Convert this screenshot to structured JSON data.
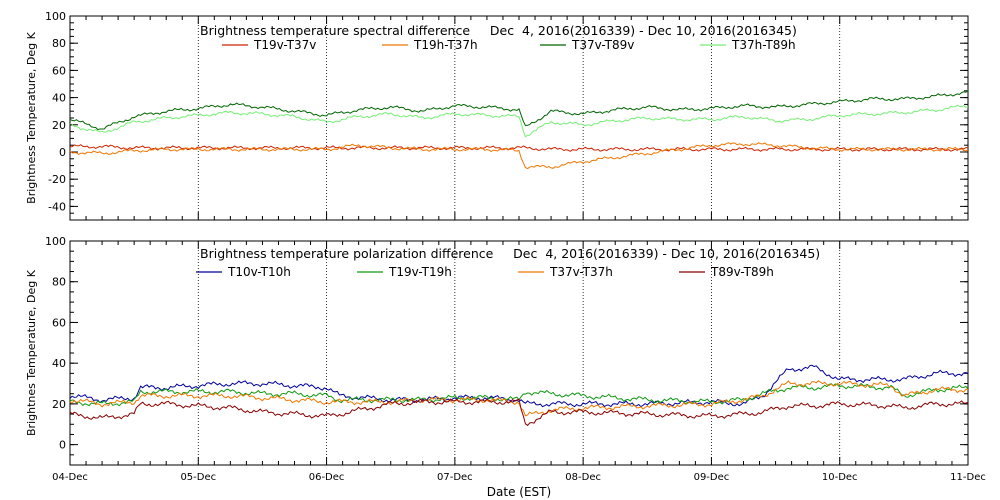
{
  "x_axis": {
    "label": "Date (EST)",
    "range": [
      0,
      7
    ],
    "ticks": [
      "04-Dec",
      "05-Dec",
      "06-Dec",
      "07-Dec",
      "08-Dec",
      "09-Dec",
      "10-Dec",
      "11-Dec"
    ]
  },
  "chart_data": [
    {
      "type": "line",
      "title": "Brightness temperature spectral difference     Dec  4, 2016(2016339) - Dec 10, 2016(2016345)",
      "ylabel": "Brightness Temperature, Deg K",
      "xlabel": "Date (EST)",
      "ylim": [
        -50,
        100
      ],
      "yticks": [
        -40,
        -20,
        0,
        20,
        40,
        60,
        80,
        100
      ],
      "grid": "vertical dotted at day boundaries",
      "legend_position": "top, two rows under title",
      "x": [
        0,
        0.25,
        0.5,
        0.75,
        1,
        1.25,
        1.5,
        1.75,
        2,
        2.25,
        2.5,
        2.75,
        3,
        3.25,
        3.5,
        3.55,
        3.75,
        4,
        4.25,
        4.5,
        4.75,
        5,
        5.25,
        5.5,
        5.75,
        6,
        6.25,
        6.5,
        6.75,
        7
      ],
      "series": [
        {
          "name": "T19v-T37v",
          "color": "#cc2200",
          "values": [
            4,
            4,
            3,
            3,
            3,
            3,
            3,
            3,
            3,
            3,
            3,
            3,
            3,
            3,
            3,
            3,
            2,
            2,
            2,
            2,
            2,
            2,
            2,
            2,
            2,
            2,
            2,
            2,
            2,
            2
          ]
        },
        {
          "name": "T19h-T37h",
          "color": "#ee7700",
          "values": [
            0,
            -1,
            1,
            2,
            2,
            2,
            2,
            2,
            2,
            5,
            3,
            2,
            2,
            2,
            1,
            -11,
            -11,
            -7,
            -4,
            -1,
            2,
            5,
            6,
            5,
            3,
            2,
            2,
            2,
            2,
            2
          ]
        },
        {
          "name": "T37v-T89v",
          "color": "#006600",
          "values": [
            24,
            17,
            26,
            30,
            32,
            35,
            33,
            30,
            27,
            31,
            33,
            30,
            34,
            33,
            31,
            18,
            30,
            28,
            31,
            33,
            31,
            32,
            34,
            33,
            35,
            37,
            39,
            39,
            41,
            44
          ]
        },
        {
          "name": "T37h-T89h",
          "color": "#77ee77",
          "values": [
            20,
            14,
            22,
            25,
            27,
            29,
            28,
            26,
            22,
            26,
            28,
            25,
            28,
            27,
            26,
            12,
            22,
            20,
            23,
            25,
            24,
            24,
            26,
            23,
            24,
            27,
            28,
            29,
            31,
            34
          ]
        }
      ]
    },
    {
      "type": "line",
      "title": "Brightness temperature polarization difference     Dec  4, 2016(2016339) - Dec 10, 2016(2016345)",
      "ylabel": "Brightnes Temperature, Deg K",
      "xlabel": "Date (EST)",
      "ylim": [
        -10,
        100
      ],
      "yticks": [
        0,
        20,
        40,
        60,
        80,
        100
      ],
      "grid": "vertical dotted at day boundaries",
      "legend_position": "top, one row under title",
      "x": [
        0,
        0.25,
        0.5,
        0.55,
        0.75,
        1,
        1.25,
        1.5,
        1.75,
        2,
        2.1,
        2.5,
        2.75,
        3,
        3.25,
        3.5,
        3.55,
        3.75,
        4,
        4.5,
        5,
        5.25,
        5.4,
        5.6,
        5.8,
        6,
        6.4,
        6.5,
        6.75,
        7
      ],
      "series": [
        {
          "name": "T10v-T10h",
          "color": "#000099",
          "values": [
            24,
            22,
            23,
            28,
            28,
            29,
            30,
            30,
            29,
            28,
            24,
            22,
            22,
            23,
            23,
            22,
            20,
            20,
            20,
            20,
            21,
            20,
            24,
            37,
            38,
            32,
            32,
            32,
            35,
            35
          ]
        },
        {
          "name": "T19v-T19h",
          "color": "#119911",
          "values": [
            21,
            20,
            21,
            26,
            26,
            26,
            26,
            25,
            25,
            24,
            22,
            22,
            22,
            23,
            23,
            22,
            26,
            25,
            24,
            22,
            21,
            22,
            25,
            28,
            28,
            29,
            28,
            24,
            27,
            28
          ]
        },
        {
          "name": "T37v-T37h",
          "color": "#ee7700",
          "values": [
            22,
            20,
            21,
            24,
            24,
            24,
            24,
            23,
            22,
            21,
            21,
            21,
            22,
            22,
            22,
            21,
            14,
            17,
            18,
            19,
            20,
            22,
            24,
            30,
            30,
            30,
            29,
            24,
            27,
            27
          ]
        },
        {
          "name": "T89v-T89h",
          "color": "#880000",
          "values": [
            15,
            13,
            15,
            20,
            20,
            19,
            18,
            16,
            15,
            14,
            15,
            20,
            21,
            21,
            21,
            21,
            10,
            16,
            16,
            15,
            14,
            15,
            16,
            19,
            19,
            20,
            19,
            18,
            20,
            20
          ]
        }
      ]
    }
  ]
}
